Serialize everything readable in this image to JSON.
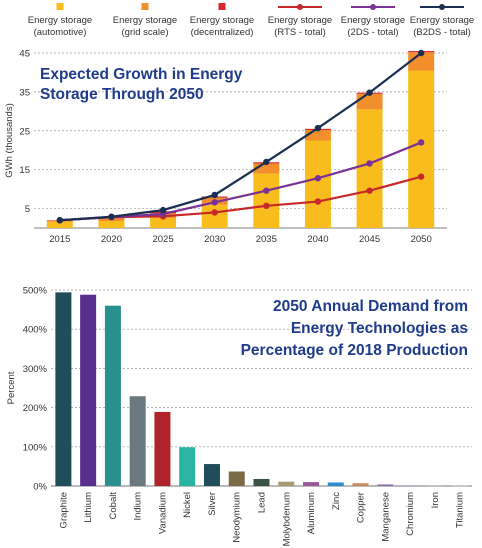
{
  "chart_data": [
    {
      "type": "bar",
      "title": "Expected Growth in Energy Storage Through 2050",
      "ylabel": "GWh (thousands)",
      "xlabel": "",
      "ylim": [
        0,
        45
      ],
      "yticks": [
        5,
        15,
        25,
        35,
        45
      ],
      "grid": true,
      "legend_placement": "top",
      "categories": [
        "2015",
        "2020",
        "2025",
        "2030",
        "2035",
        "2040",
        "2045",
        "2050"
      ],
      "stacked_series": [
        {
          "name": "Energy storage (automotive)",
          "line2": "(automotive)",
          "color": "#f8bc1c",
          "values": [
            1.6,
            1.8,
            2.6,
            6.0,
            14.0,
            22.5,
            30.5,
            40.5
          ]
        },
        {
          "name": "Energy storage (grid scale)",
          "line2": "(grid scale)",
          "color": "#f28f2c",
          "values": [
            0.3,
            0.7,
            1.2,
            1.8,
            2.6,
            2.7,
            4.0,
            4.7
          ]
        },
        {
          "name": "Energy storage (decentralized)",
          "line2": "(decentralized)",
          "color": "#d7282f",
          "values": [
            0.1,
            0.3,
            0.5,
            0.3,
            0.3,
            0.3,
            0.3,
            0.3
          ]
        }
      ],
      "line_series": [
        {
          "name": "Energy storage (RTS - total)",
          "line2": "(RTS - total)",
          "color": "#c6282b",
          "values": [
            2.0,
            2.8,
            3.0,
            4.0,
            5.7,
            6.8,
            9.6,
            13.2
          ]
        },
        {
          "name": "Energy storage (2DS - total)",
          "line2": "(2DS - total)",
          "color": "#7b3294",
          "values": [
            2.0,
            2.8,
            3.6,
            6.6,
            9.6,
            12.8,
            16.6,
            22.0
          ]
        },
        {
          "name": "Energy storage (B2DS - total)",
          "line2": "(B2DS - total)",
          "color": "#1b2f52",
          "values": [
            2.0,
            2.9,
            4.6,
            8.5,
            17.0,
            25.7,
            34.8,
            45.0
          ]
        }
      ],
      "legend_line1": "Energy storage"
    },
    {
      "type": "bar",
      "title": "2050 Annual Demand from Energy Technologies as Percentage of 2018 Production",
      "title_lines": [
        "2050 Annual Demand from",
        "Energy Technologies as",
        "Percentage of 2018 Production"
      ],
      "ylabel": "Percent",
      "xlabel": "",
      "ylim": [
        0,
        500
      ],
      "yticks": [
        0,
        100,
        200,
        300,
        400,
        500
      ],
      "ytick_labels": [
        "0%",
        "100%",
        "200%",
        "300%",
        "400%",
        "500%"
      ],
      "grid": true,
      "categories": [
        "Graphite",
        "Lithium",
        "Cobalt",
        "Indium",
        "Vanadium",
        "Nickel",
        "Silver",
        "Neodymium",
        "Lead",
        "Molybdenum",
        "Aluminum",
        "Zinc",
        "Copper",
        "Manganese",
        "Chromium",
        "Iron",
        "Titanium"
      ],
      "values": [
        494,
        488,
        460,
        229,
        189,
        99,
        56,
        37,
        18,
        11,
        10,
        9,
        7,
        4,
        1,
        1,
        1
      ],
      "colors": [
        "#1f4e5a",
        "#5b2d8e",
        "#2a8f8f",
        "#6c7880",
        "#b0232a",
        "#2bb3a3",
        "#1f4e5a",
        "#7a6a45",
        "#3b5245",
        "#a89a72",
        "#9a5a9a",
        "#2b8fcf",
        "#c9895a",
        "#8a6fa8",
        "#7f6a8a",
        "#8a8a8a",
        "#9a9a9a"
      ]
    }
  ]
}
